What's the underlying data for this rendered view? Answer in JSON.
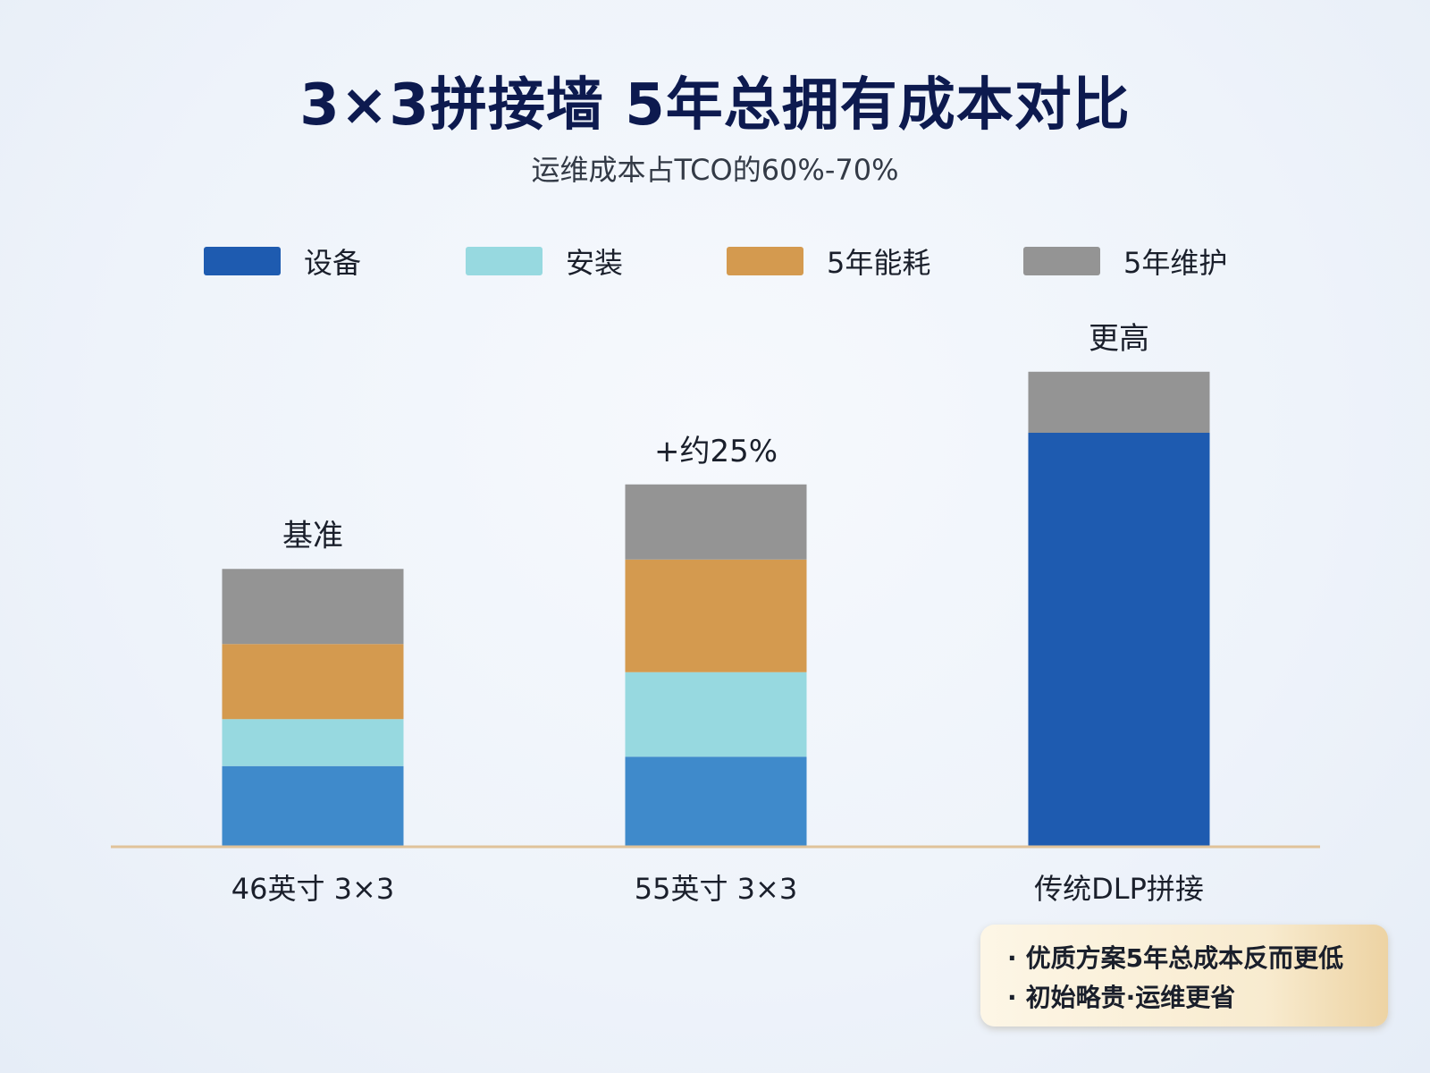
{
  "chart_data": {
    "type": "bar",
    "stacked": true,
    "title": "3×3拼接墙 5年总拥有成本对比",
    "subtitle": "运维成本占TCO的60%-70%",
    "categories": [
      "46英寸 3×3",
      "55英寸 3×3",
      "传统DLP拼接"
    ],
    "bar_labels": [
      "基准",
      "+约25%",
      "更高"
    ],
    "series": [
      {
        "name": "设备",
        "color": "#1e5bb0",
        "values": [
          17,
          19,
          88
        ]
      },
      {
        "name": "安装",
        "color": "#97d9e0",
        "values": [
          10,
          18,
          0
        ]
      },
      {
        "name": "5年能耗",
        "color": "#d49a4f",
        "values": [
          16,
          24,
          0
        ]
      },
      {
        "name": "5年维护",
        "color": "#949494",
        "values": [
          16,
          16,
          13
        ]
      }
    ],
    "segment_colors": {
      "设备": [
        "#3f8acb",
        "#3f8acb",
        "#1e5bb0"
      ]
    },
    "ylim": [
      0,
      101
    ],
    "grid": false,
    "legend_position": "top"
  },
  "notes": [
    "优质方案5年总成本反而更低",
    "初始略贵·运维更省"
  ],
  "note_bullet": "·",
  "colors": {
    "title": "#0d1a4f",
    "baseline": "#e0c39a"
  }
}
